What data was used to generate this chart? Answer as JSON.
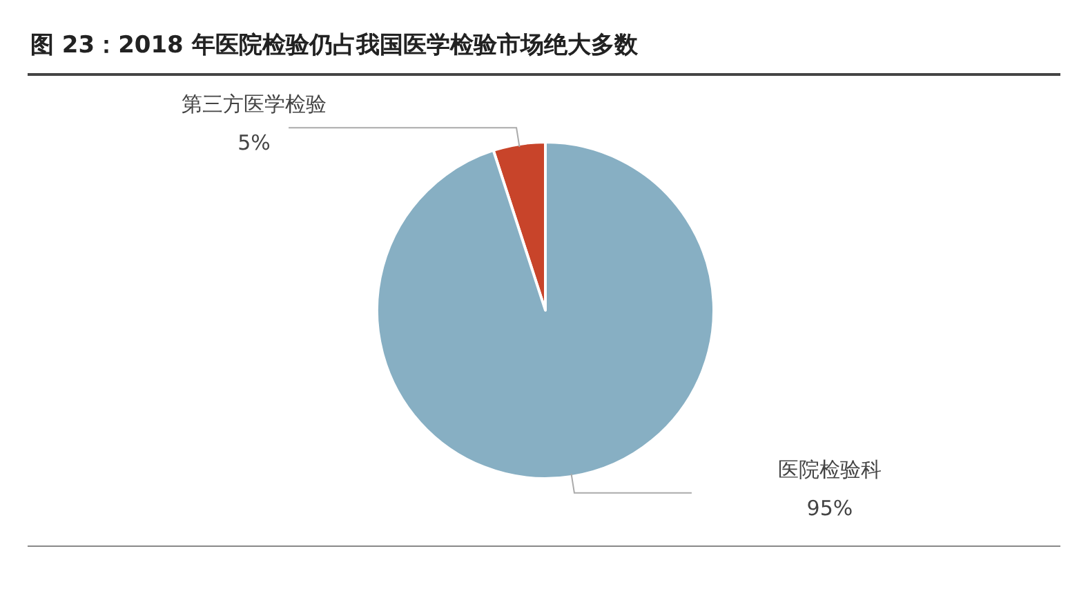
{
  "chart_data": {
    "type": "pie",
    "title": "图 23：2018 年医院检验仍占我国医学检验市场绝大多数",
    "categories": [
      "第三方医学检验",
      "医院检验科"
    ],
    "values": [
      5,
      95
    ],
    "value_labels": [
      "5%",
      "95%"
    ],
    "colors": [
      "#c8442a",
      "#87afc3"
    ]
  }
}
